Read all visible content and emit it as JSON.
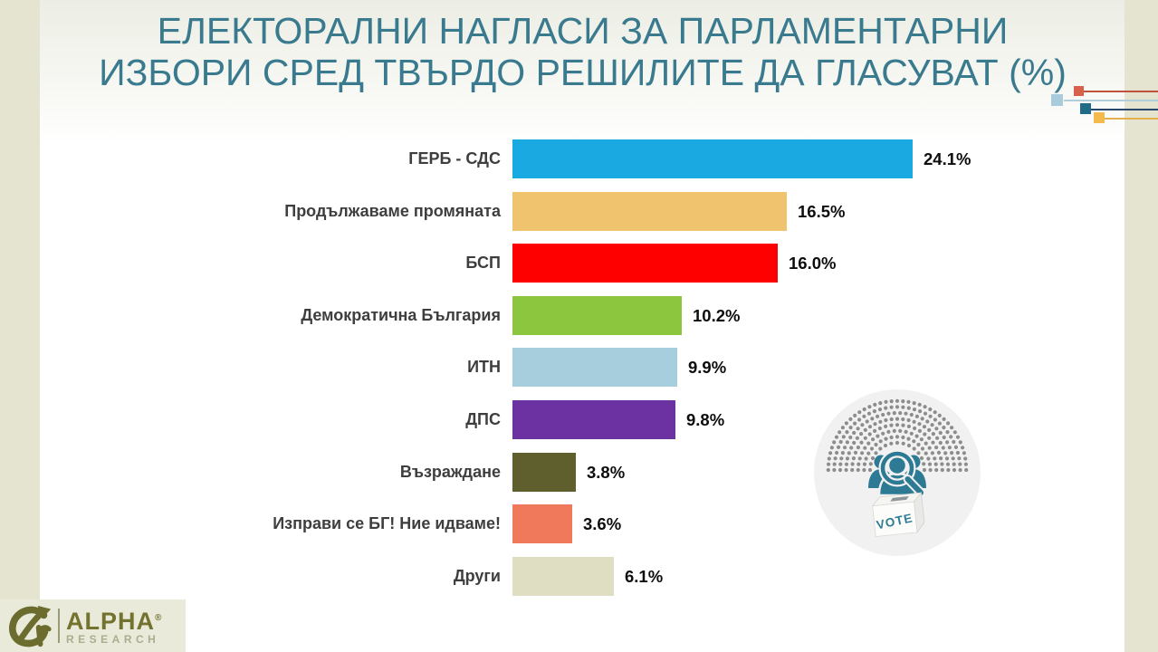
{
  "slide": {
    "title_line1": "ЕЛЕКТОРАЛНИ НАГЛАСИ ЗА ПАРЛАМЕНТАРНИ",
    "title_line2": "ИЗБОРИ СРЕД ТВЪРДО РЕШИЛИТЕ ДА ГЛАСУВАТ (%)"
  },
  "chart_data": {
    "type": "bar",
    "orientation": "horizontal",
    "title": "ЕЛЕКТОРАЛНИ НАГЛАСИ ЗА ПАРЛАМЕНТАРНИ ИЗБОРИ СРЕД ТВЪРДО РЕШИЛИТЕ ДА ГЛАСУВАТ (%)",
    "unit": "%",
    "xlim": [
      0,
      26
    ],
    "grid": false,
    "legend": false,
    "categories": [
      "ГЕРБ - СДС",
      "Продължаваме промяната",
      "БСП",
      "Демократична България",
      "ИТН",
      "ДПС",
      "Възраждане",
      "Изправи се БГ! Ние идваме!",
      "Други"
    ],
    "values": [
      24.1,
      16.5,
      16.0,
      10.2,
      9.9,
      9.8,
      3.8,
      3.6,
      6.1
    ],
    "value_labels": [
      "24.1%",
      "16.5%",
      "16.0%",
      "10.2%",
      "9.9%",
      "9.8%",
      "3.8%",
      "3.6%",
      "6.1%"
    ],
    "bar_colors": [
      "#1ba9e2",
      "#f0c36e",
      "#fe0000",
      "#8cc63f",
      "#a6cedd",
      "#6c32a2",
      "#5f5f2e",
      "#f0795c",
      "#dfdec2"
    ]
  },
  "illustration": {
    "name": "parliament-hemicycle-vote",
    "vote_label": "VOTE",
    "dot_color": "#8d8d8d",
    "icon_color": "#2c7a94",
    "circle_color": "#f1f1f1"
  },
  "decoration": {
    "squares": [
      {
        "name": "red",
        "color": "#d9604a",
        "line_color": "#c0523d"
      },
      {
        "name": "light-blue",
        "color": "#a9cbdc",
        "line_color": "#b0cedc"
      },
      {
        "name": "dark-teal",
        "color": "#1f6b88",
        "line_color": "#27476b"
      },
      {
        "name": "yellow",
        "color": "#f3ba4d",
        "line_color": "#e4af4a"
      }
    ]
  },
  "logo": {
    "brand": "ALPHA",
    "registered": "®",
    "subtitle": "RESEARCH"
  },
  "colors": {
    "title": "#3a7a8e",
    "category_label": "#3e3e3e",
    "value_label": "#0d0d0d",
    "side_strip": "#e4e4d1",
    "logo_background": "#eaeadb"
  }
}
